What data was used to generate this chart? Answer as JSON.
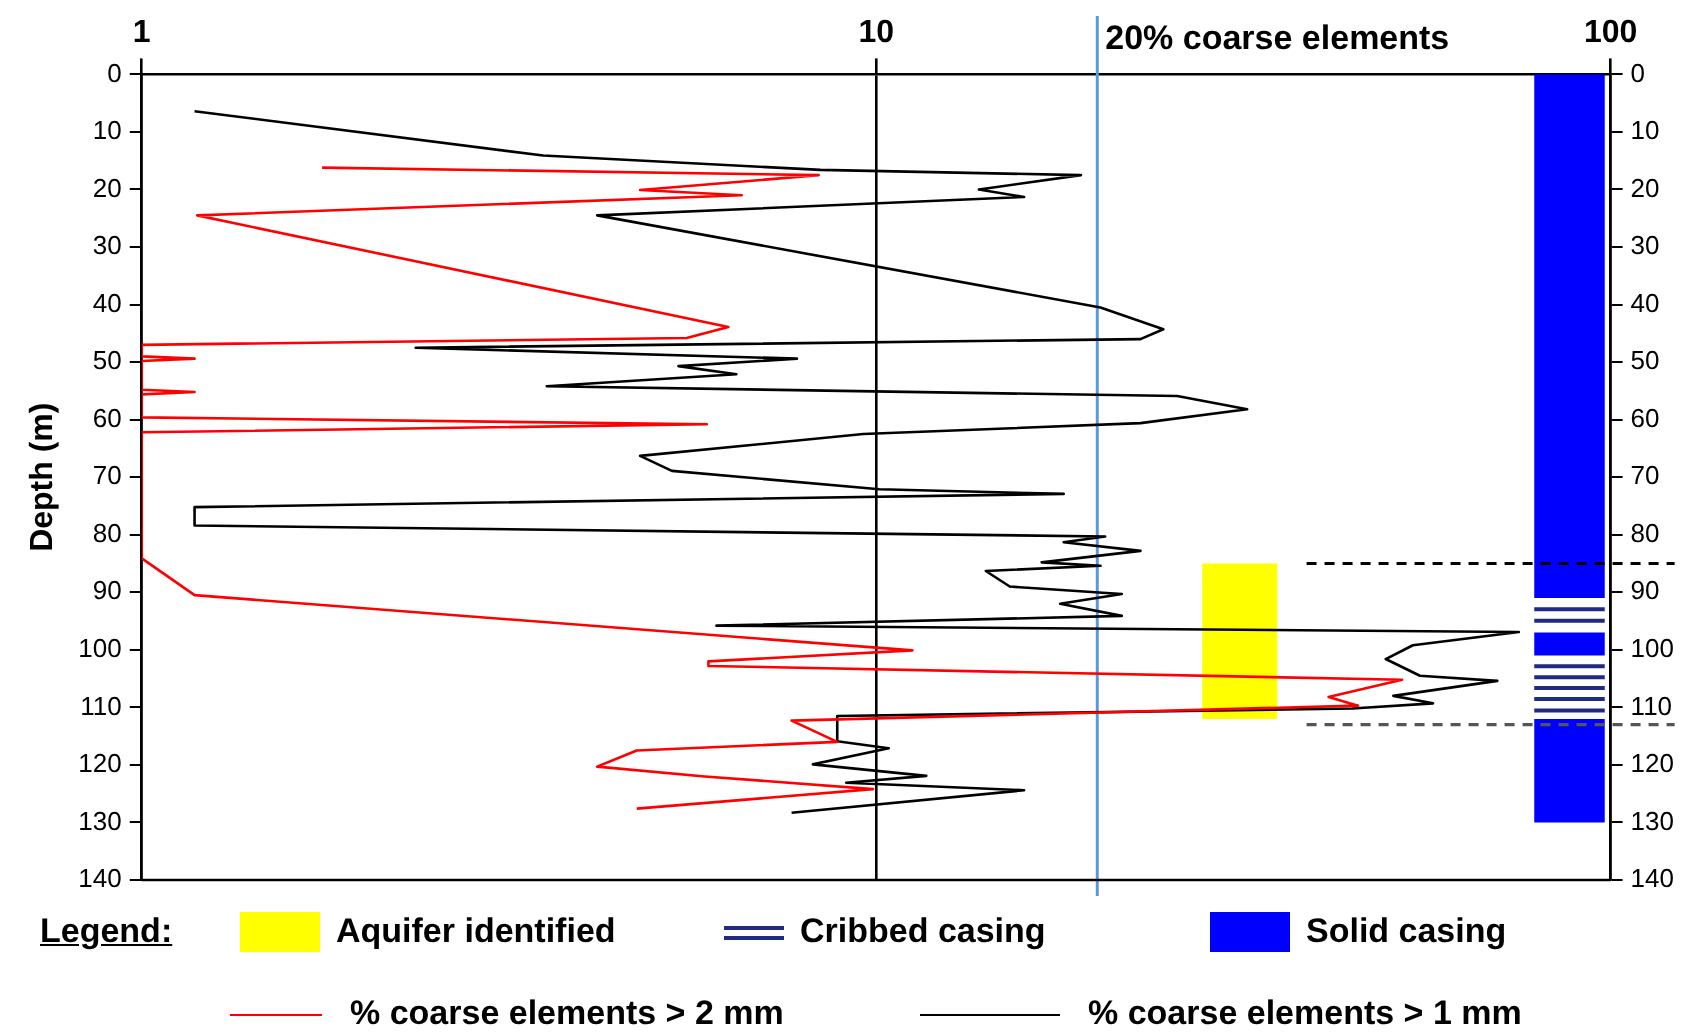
{
  "chart_data": {
    "type": "line",
    "ylabel": "Depth (m)",
    "legend_title": "Legend:",
    "log": "x",
    "grid": "x",
    "legend": "bottom",
    "marker": "none",
    "xlim": [
      1,
      100
    ],
    "xticks": [
      1,
      10,
      100
    ],
    "ylim": [
      140,
      0
    ],
    "yticks": [
      0,
      10,
      20,
      30,
      40,
      50,
      60,
      70,
      80,
      90,
      100,
      110,
      120,
      130,
      140
    ],
    "y2lim": [
      140,
      0
    ],
    "y2ticks": [
      0,
      10,
      20,
      30,
      40,
      50,
      60,
      70,
      80,
      90,
      100,
      110,
      120,
      130,
      140
    ],
    "bands": [
      {
        "axis": "y",
        "from": 85,
        "to": 112,
        "label": "Aquifer identified",
        "color": "#ffff00"
      },
      {
        "axis": "y",
        "from": 92.6,
        "to": 93.3,
        "label": "Cribbed casing",
        "color": "#1f2a80"
      },
      {
        "axis": "y",
        "from": 94.6,
        "to": 95.3,
        "color": "#1f2a80"
      },
      {
        "axis": "y",
        "from": 102.5,
        "to": 103.2,
        "color": "#1f2a80"
      },
      {
        "axis": "y",
        "from": 104.4,
        "to": 105.1,
        "color": "#1f2a80"
      },
      {
        "axis": "y",
        "from": 106.3,
        "to": 107.0,
        "color": "#1f2a80"
      },
      {
        "axis": "y",
        "from": 108.2,
        "to": 108.9,
        "color": "#1f2a80"
      },
      {
        "axis": "y",
        "from": 110.2,
        "to": 110.9,
        "color": "#1f2a80"
      },
      {
        "axis": "y",
        "from": 0,
        "to": 91,
        "label": "Solid casing",
        "color": "#0000ff"
      },
      {
        "axis": "y",
        "from": 97,
        "to": 101,
        "color": "#0000ff"
      },
      {
        "axis": "y",
        "from": 112,
        "to": 130,
        "color": "#0000ff"
      }
    ],
    "ref_lines": [
      {
        "axis": "x",
        "value": 20,
        "label": "20% coarse elements",
        "color": "#5b9bd5"
      },
      {
        "axis": "y",
        "value": 85,
        "color": "#000000",
        "line_style": "dashed"
      },
      {
        "axis": "y",
        "value": 113,
        "color": "#555555",
        "line_style": "dashed"
      }
    ],
    "series": [
      {
        "name": "% coarse elements > 2 mm",
        "color": "#ff0000",
        "x": [
          1.76,
          8.35,
          4.77,
          6.56,
          1.19,
          6.29,
          5.52,
          1.0,
          1.0,
          1.18,
          1.0,
          1.0,
          1.18,
          1.0,
          1.0,
          5.88,
          1.0,
          1.0,
          1.18,
          11.2,
          5.91,
          5.91,
          52,
          41.3,
          45.3,
          7.67,
          8.85,
          4.72,
          4.17,
          5.84,
          9.9,
          4.72
        ],
        "values": [
          16.2,
          17.5,
          20.1,
          21.0,
          24.5,
          43.9,
          45.8,
          47.0,
          49.0,
          49.4,
          49.8,
          54.8,
          55.2,
          55.6,
          59.6,
          60.8,
          62.2,
          84.1,
          90.5,
          100.1,
          102.0,
          102.8,
          105.2,
          108.2,
          109.7,
          112.3,
          116.0,
          117.5,
          120.3,
          122.0,
          124.2,
          127.6
        ]
      },
      {
        "name": "% coarse elements > 1 mm",
        "color": "#000000",
        "x": [
          1.18,
          3.52,
          8.4,
          19.0,
          13.8,
          15.9,
          4.17,
          20.2,
          24.6,
          22.9,
          2.36,
          7.8,
          5.38,
          6.45,
          3.56,
          25.7,
          32,
          22.9,
          9.6,
          4.77,
          5.27,
          10.1,
          18.0,
          1.18,
          1.18,
          20.5,
          18.0,
          22.9,
          16.8,
          20.2,
          14.1,
          15.2,
          21.6,
          17.8,
          21.6,
          6.06,
          75,
          53.8,
          49.4,
          55,
          70.1,
          50.6,
          57.3,
          44.5,
          8.85,
          8.85,
          10.4,
          8.2,
          11.7,
          9.1,
          15.9,
          7.67
        ],
        "values": [
          6.4,
          14.1,
          16.6,
          17.5,
          20.0,
          21.3,
          24.5,
          40.5,
          44.3,
          46.0,
          47.5,
          49.4,
          50.7,
          52.1,
          54.2,
          55.9,
          58.2,
          60.6,
          62.5,
          66.3,
          68.9,
          72.1,
          72.9,
          75.2,
          78.4,
          80.3,
          81.3,
          82.8,
          84.8,
          85.4,
          86.3,
          89.0,
          90.3,
          92.0,
          94.1,
          95.8,
          96.9,
          99.2,
          101.6,
          104.5,
          105.4,
          108.0,
          109.3,
          110.2,
          111.5,
          115.9,
          117.1,
          119.9,
          121.9,
          123.1,
          124.4,
          128.3
        ]
      }
    ]
  }
}
